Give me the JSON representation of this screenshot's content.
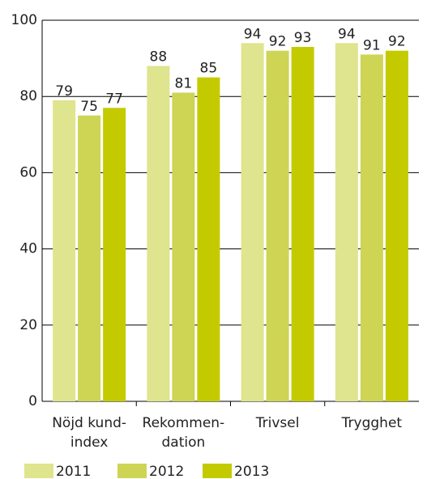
{
  "chart_data": {
    "type": "bar",
    "categories": [
      "Nöjd kund-\nindex",
      "Rekommen-\ndation",
      "Trivsel",
      "Trygghet"
    ],
    "series": [
      {
        "name": "2011",
        "color": "#dfe48e",
        "values": [
          79,
          88,
          94,
          94
        ]
      },
      {
        "name": "2012",
        "color": "#ced454",
        "values": [
          75,
          81,
          92,
          91
        ]
      },
      {
        "name": "2013",
        "color": "#c3cb00",
        "values": [
          77,
          85,
          93,
          92
        ]
      }
    ],
    "ylim": [
      0,
      100
    ],
    "yticks": [
      0,
      20,
      40,
      60,
      80,
      100
    ],
    "grid": true,
    "legend": "bottom"
  }
}
